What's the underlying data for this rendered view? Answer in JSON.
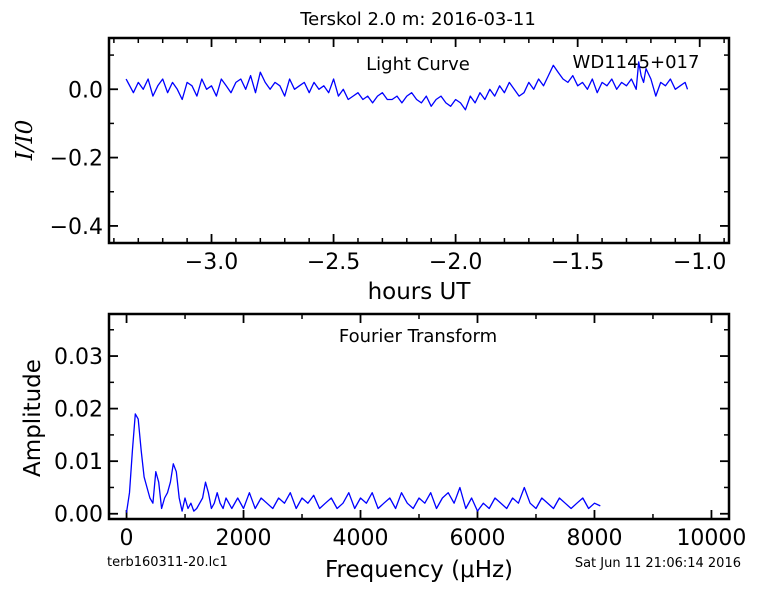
{
  "figure": {
    "suptitle": "Terskol 2.0 m:  2016-03-11",
    "footer_left": "terb160311-20.lc1",
    "footer_right": "Sat Jun 11 21:06:14 2016"
  },
  "chart_data": [
    {
      "type": "line",
      "title": "Light Curve",
      "annotation": "WD1145+017",
      "xlabel": "hours UT",
      "ylabel": "I/I0",
      "xlim": [
        -3.42,
        -0.88
      ],
      "ylim": [
        -0.45,
        0.15
      ],
      "xticks": [
        -3.0,
        -2.5,
        -2.0,
        -1.5,
        -1.0
      ],
      "xtick_labels": [
        "−3.0",
        "−2.5",
        "−2.0",
        "−1.5",
        "−1.0"
      ],
      "yticks": [
        0.0,
        -0.2,
        -0.4
      ],
      "ytick_labels": [
        "0.0",
        "−0.2",
        "−0.4"
      ],
      "grid": false,
      "series": [
        {
          "color": "#0000ff",
          "x": [
            -3.35,
            -3.32,
            -3.3,
            -3.28,
            -3.26,
            -3.24,
            -3.22,
            -3.2,
            -3.18,
            -3.16,
            -3.14,
            -3.12,
            -3.1,
            -3.08,
            -3.06,
            -3.04,
            -3.02,
            -3.0,
            -2.98,
            -2.96,
            -2.94,
            -2.92,
            -2.9,
            -2.88,
            -2.86,
            -2.84,
            -2.82,
            -2.8,
            -2.78,
            -2.76,
            -2.74,
            -2.72,
            -2.7,
            -2.68,
            -2.66,
            -2.64,
            -2.62,
            -2.6,
            -2.58,
            -2.56,
            -2.54,
            -2.52,
            -2.5,
            -2.48,
            -2.46,
            -2.44,
            -2.42,
            -2.4,
            -2.38,
            -2.36,
            -2.34,
            -2.32,
            -2.3,
            -2.28,
            -2.26,
            -2.24,
            -2.22,
            -2.2,
            -2.18,
            -2.16,
            -2.14,
            -2.12,
            -2.1,
            -2.08,
            -2.06,
            -2.04,
            -2.02,
            -2.0,
            -1.98,
            -1.96,
            -1.94,
            -1.92,
            -1.9,
            -1.88,
            -1.86,
            -1.84,
            -1.82,
            -1.8,
            -1.78,
            -1.76,
            -1.74,
            -1.72,
            -1.7,
            -1.68,
            -1.66,
            -1.64,
            -1.62,
            -1.6,
            -1.58,
            -1.56,
            -1.54,
            -1.52,
            -1.5,
            -1.48,
            -1.46,
            -1.44,
            -1.42,
            -1.4,
            -1.38,
            -1.36,
            -1.34,
            -1.32,
            -1.3,
            -1.28,
            -1.26,
            -1.25,
            -1.24,
            -1.23,
            -1.22,
            -1.2,
            -1.18,
            -1.16,
            -1.14,
            -1.12,
            -1.1,
            -1.08,
            -1.06,
            -1.05
          ],
          "y": [
            0.03,
            -0.01,
            0.02,
            0.0,
            0.03,
            -0.02,
            0.01,
            0.03,
            -0.01,
            0.02,
            0.0,
            -0.03,
            0.02,
            0.01,
            -0.02,
            0.03,
            0.0,
            0.01,
            -0.02,
            0.03,
            0.01,
            -0.01,
            0.02,
            0.03,
            0.0,
            0.04,
            -0.01,
            0.05,
            0.02,
            0.0,
            0.02,
            0.01,
            -0.02,
            0.03,
            0.0,
            0.01,
            0.02,
            -0.01,
            0.02,
            0.0,
            0.01,
            -0.01,
            0.03,
            -0.02,
            0.0,
            -0.03,
            -0.02,
            -0.01,
            -0.03,
            -0.02,
            -0.04,
            -0.02,
            -0.01,
            -0.03,
            -0.03,
            -0.02,
            -0.04,
            -0.02,
            -0.01,
            -0.03,
            -0.04,
            -0.02,
            -0.05,
            -0.03,
            -0.02,
            -0.04,
            -0.05,
            -0.03,
            -0.04,
            -0.06,
            -0.02,
            -0.04,
            -0.01,
            -0.03,
            0.0,
            -0.02,
            0.01,
            -0.01,
            0.02,
            0.0,
            -0.02,
            -0.01,
            0.02,
            0.0,
            0.03,
            0.01,
            0.04,
            0.07,
            0.05,
            0.03,
            0.02,
            0.04,
            0.01,
            0.02,
            0.0,
            0.03,
            -0.01,
            0.02,
            0.01,
            0.03,
            0.0,
            0.02,
            0.01,
            0.03,
            0.0,
            0.08,
            0.04,
            0.02,
            0.06,
            0.03,
            -0.02,
            0.02,
            0.01,
            0.03,
            0.0,
            0.01,
            0.02,
            0.0
          ]
        }
      ]
    },
    {
      "type": "line",
      "title": "Fourier Transform",
      "xlabel": "Frequency (μHz)",
      "ylabel": "Amplitude",
      "xlim": [
        -300,
        10300
      ],
      "ylim": [
        -0.001,
        0.038
      ],
      "xticks": [
        0,
        2000,
        4000,
        6000,
        8000,
        10000
      ],
      "xtick_labels": [
        "0",
        "2000",
        "4000",
        "6000",
        "8000",
        "10000"
      ],
      "yticks": [
        0.0,
        0.01,
        0.02,
        0.03
      ],
      "ytick_labels": [
        "0.00",
        "0.01",
        "0.02",
        "0.03"
      ],
      "grid": false,
      "series": [
        {
          "color": "#0000ff",
          "x": [
            0,
            50,
            100,
            150,
            200,
            250,
            300,
            350,
            400,
            450,
            500,
            550,
            600,
            650,
            700,
            750,
            800,
            850,
            900,
            950,
            1000,
            1050,
            1100,
            1150,
            1200,
            1250,
            1300,
            1350,
            1400,
            1450,
            1500,
            1550,
            1600,
            1650,
            1700,
            1750,
            1800,
            1900,
            2000,
            2100,
            2200,
            2300,
            2400,
            2500,
            2600,
            2700,
            2800,
            2900,
            3000,
            3100,
            3200,
            3300,
            3400,
            3500,
            3600,
            3700,
            3800,
            3900,
            4000,
            4100,
            4200,
            4300,
            4400,
            4500,
            4600,
            4700,
            4800,
            4900,
            5000,
            5100,
            5200,
            5300,
            5400,
            5500,
            5600,
            5700,
            5800,
            5900,
            6000,
            6100,
            6200,
            6300,
            6400,
            6500,
            6600,
            6700,
            6800,
            6900,
            7000,
            7100,
            7200,
            7300,
            7400,
            7500,
            7600,
            7700,
            7800,
            7900,
            8000,
            8100
          ],
          "y": [
            0.0002,
            0.004,
            0.012,
            0.019,
            0.018,
            0.012,
            0.007,
            0.005,
            0.003,
            0.002,
            0.008,
            0.006,
            0.001,
            0.003,
            0.004,
            0.006,
            0.0095,
            0.008,
            0.003,
            0.0005,
            0.003,
            0.001,
            0.002,
            0.0005,
            0.001,
            0.002,
            0.003,
            0.006,
            0.004,
            0.001,
            0.002,
            0.004,
            0.002,
            0.001,
            0.003,
            0.002,
            0.001,
            0.003,
            0.001,
            0.004,
            0.001,
            0.003,
            0.002,
            0.001,
            0.003,
            0.002,
            0.004,
            0.001,
            0.003,
            0.002,
            0.0035,
            0.001,
            0.002,
            0.003,
            0.001,
            0.002,
            0.004,
            0.001,
            0.003,
            0.002,
            0.004,
            0.001,
            0.002,
            0.003,
            0.001,
            0.004,
            0.002,
            0.001,
            0.003,
            0.002,
            0.004,
            0.001,
            0.003,
            0.004,
            0.002,
            0.005,
            0.001,
            0.003,
            0.0005,
            0.002,
            0.001,
            0.003,
            0.002,
            0.001,
            0.003,
            0.002,
            0.005,
            0.002,
            0.001,
            0.003,
            0.002,
            0.001,
            0.003,
            0.002,
            0.001,
            0.002,
            0.003,
            0.001,
            0.002,
            0.0015
          ]
        }
      ]
    }
  ]
}
